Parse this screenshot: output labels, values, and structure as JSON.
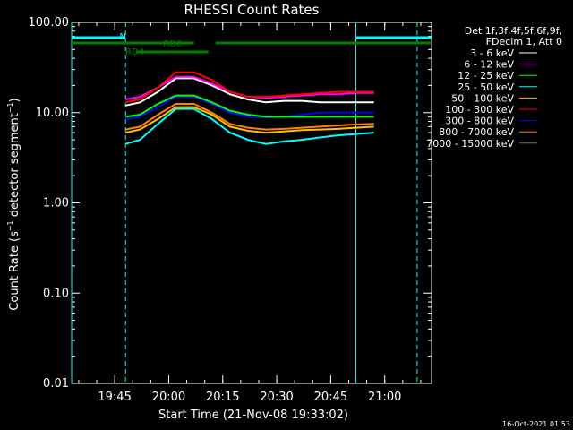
{
  "chart_data": {
    "type": "line",
    "title": "RHESSI Count Rates",
    "xlabel": "Start Time (21-Nov-08 19:33:02)",
    "ylabel": "Count Rate (s",
    "ylabel_exp": "−1",
    "ylabel_tail": " detector segment",
    "ylabel_close": ")",
    "yscale": "log",
    "ylim": [
      0.01,
      100
    ],
    "xlim": [
      "19:33:02",
      "21:13:00"
    ],
    "xticks": [
      {
        "label": "19:45",
        "t": "19:45"
      },
      {
        "label": "20:00",
        "t": "20:00"
      },
      {
        "label": "20:15",
        "t": "20:15"
      },
      {
        "label": "20:30",
        "t": "20:30"
      },
      {
        "label": "20:45",
        "t": "20:45"
      },
      {
        "label": "21:00",
        "t": "21:00"
      }
    ],
    "yticks": [
      {
        "label": "100.00",
        "v": 100
      },
      {
        "label": "10.00",
        "v": 10
      },
      {
        "label": "1.00",
        "v": 1
      },
      {
        "label": "0.10",
        "v": 0.1
      },
      {
        "label": "0.01",
        "v": 0.01
      }
    ],
    "legend_header": [
      "Det 1f,3f,4f,5f,6f,9f,",
      "FDecim 1, Att 0"
    ],
    "legend_position": "outside-right",
    "series": [
      {
        "name": "3 - 6 keV",
        "color": "#ffffff",
        "points": [
          [
            "19:48",
            12
          ],
          [
            "19:52",
            13
          ],
          [
            "19:57",
            17
          ],
          [
            "20:02",
            24
          ],
          [
            "20:07",
            24
          ],
          [
            "20:12",
            20
          ],
          [
            "20:17",
            16
          ],
          [
            "20:22",
            14
          ],
          [
            "20:27",
            13
          ],
          [
            "20:32",
            13.5
          ],
          [
            "20:37",
            13.5
          ],
          [
            "20:42",
            13
          ],
          [
            "20:47",
            13
          ],
          [
            "20:52",
            13
          ],
          [
            "20:57",
            13
          ]
        ]
      },
      {
        "name": "6 - 12 keV",
        "color": "#ff00ff",
        "points": [
          [
            "19:48",
            14
          ],
          [
            "19:52",
            15
          ],
          [
            "19:57",
            19
          ],
          [
            "20:02",
            25
          ],
          [
            "20:07",
            25
          ],
          [
            "20:12",
            21
          ],
          [
            "20:17",
            17
          ],
          [
            "20:22",
            15
          ],
          [
            "20:27",
            14.5
          ],
          [
            "20:32",
            15
          ],
          [
            "20:37",
            15.5
          ],
          [
            "20:42",
            16
          ],
          [
            "20:47",
            16
          ],
          [
            "20:52",
            16.5
          ],
          [
            "20:57",
            16.5
          ]
        ]
      },
      {
        "name": "12 - 25 keV",
        "color": "#00ff00",
        "points": [
          [
            "19:48",
            9
          ],
          [
            "19:52",
            9.5
          ],
          [
            "19:57",
            12.5
          ],
          [
            "20:02",
            15.5
          ],
          [
            "20:07",
            15.5
          ],
          [
            "20:12",
            13
          ],
          [
            "20:17",
            10.5
          ],
          [
            "20:22",
            9.5
          ],
          [
            "20:27",
            9
          ],
          [
            "20:32",
            9
          ],
          [
            "20:37",
            9
          ],
          [
            "20:42",
            9
          ],
          [
            "20:47",
            9
          ],
          [
            "20:52",
            9
          ],
          [
            "20:57",
            9
          ]
        ]
      },
      {
        "name": "25 - 50 keV",
        "color": "#00ffff",
        "points": [
          [
            "19:48",
            4.5
          ],
          [
            "19:52",
            5
          ],
          [
            "19:57",
            7.5
          ],
          [
            "20:02",
            11
          ],
          [
            "20:07",
            11
          ],
          [
            "20:12",
            8.5
          ],
          [
            "20:17",
            6
          ],
          [
            "20:22",
            5
          ],
          [
            "20:27",
            4.5
          ],
          [
            "20:32",
            4.8
          ],
          [
            "20:37",
            5
          ],
          [
            "20:42",
            5.3
          ],
          [
            "20:47",
            5.6
          ],
          [
            "20:52",
            5.8
          ],
          [
            "20:57",
            6
          ]
        ]
      },
      {
        "name": "50 - 100 keV",
        "color": "#ffc000",
        "points": [
          [
            "19:48",
            6
          ],
          [
            "19:52",
            6.5
          ],
          [
            "19:57",
            8.5
          ],
          [
            "20:02",
            11.5
          ],
          [
            "20:07",
            11.5
          ],
          [
            "20:12",
            9.5
          ],
          [
            "20:17",
            7
          ],
          [
            "20:22",
            6.3
          ],
          [
            "20:27",
            6
          ],
          [
            "20:32",
            6.2
          ],
          [
            "20:37",
            6.4
          ],
          [
            "20:42",
            6.5
          ],
          [
            "20:47",
            6.6
          ],
          [
            "20:52",
            6.8
          ],
          [
            "20:57",
            7
          ]
        ]
      },
      {
        "name": "100 - 300 keV",
        "color": "#ff0000",
        "points": [
          [
            "19:48",
            13
          ],
          [
            "19:52",
            14
          ],
          [
            "19:57",
            19
          ],
          [
            "20:02",
            28
          ],
          [
            "20:07",
            28
          ],
          [
            "20:12",
            23
          ],
          [
            "20:17",
            17
          ],
          [
            "20:22",
            15
          ],
          [
            "20:27",
            15
          ],
          [
            "20:32",
            15.5
          ],
          [
            "20:37",
            16
          ],
          [
            "20:42",
            16.5
          ],
          [
            "20:47",
            17
          ],
          [
            "20:52",
            17
          ],
          [
            "20:57",
            17
          ]
        ]
      },
      {
        "name": "300 - 800 keV",
        "color": "#0000ff",
        "points": [
          [
            "19:48",
            8.5
          ],
          [
            "19:52",
            9
          ],
          [
            "19:57",
            11.5
          ],
          [
            "20:02",
            15
          ],
          [
            "20:07",
            15
          ],
          [
            "20:12",
            12.5
          ],
          [
            "20:17",
            10
          ],
          [
            "20:22",
            9
          ],
          [
            "20:27",
            8.8
          ],
          [
            "20:32",
            9
          ],
          [
            "20:37",
            9.5
          ],
          [
            "20:42",
            10
          ],
          [
            "20:47",
            10
          ],
          [
            "20:52",
            10
          ],
          [
            "20:57",
            10
          ]
        ]
      },
      {
        "name": "800 - 7000 keV",
        "color": "#ff8000",
        "points": [
          [
            "19:48",
            6.5
          ],
          [
            "19:52",
            7
          ],
          [
            "19:57",
            9.5
          ],
          [
            "20:02",
            12.5
          ],
          [
            "20:07",
            12.5
          ],
          [
            "20:12",
            10
          ],
          [
            "20:17",
            7.5
          ],
          [
            "20:22",
            6.8
          ],
          [
            "20:27",
            6.5
          ],
          [
            "20:32",
            6.6
          ],
          [
            "20:37",
            6.8
          ],
          [
            "20:42",
            7
          ],
          [
            "20:47",
            7.2
          ],
          [
            "20:52",
            7.4
          ],
          [
            "20:57",
            7.5
          ]
        ]
      },
      {
        "name": "7000 - 15000 keV",
        "color": "#808000",
        "points": []
      }
    ],
    "annotations": {
      "night_intervals": [
        [
          "19:33:02",
          "19:48"
        ],
        [
          "20:52",
          "21:13"
        ]
      ],
      "vertical_solid": [
        "19:33:02",
        "20:52"
      ],
      "vertical_dashed": [
        "19:48",
        "21:09"
      ],
      "saa_label": "N",
      "decimation_labels": [
        {
          "text": "RD0",
          "t": "19:58"
        },
        {
          "text": "RD4",
          "t": "19:47"
        }
      ],
      "bar_color_night": "#00ffff",
      "bar_color_decim": "#008000"
    },
    "footer_timestamp": "16-Oct-2021 01:53"
  }
}
